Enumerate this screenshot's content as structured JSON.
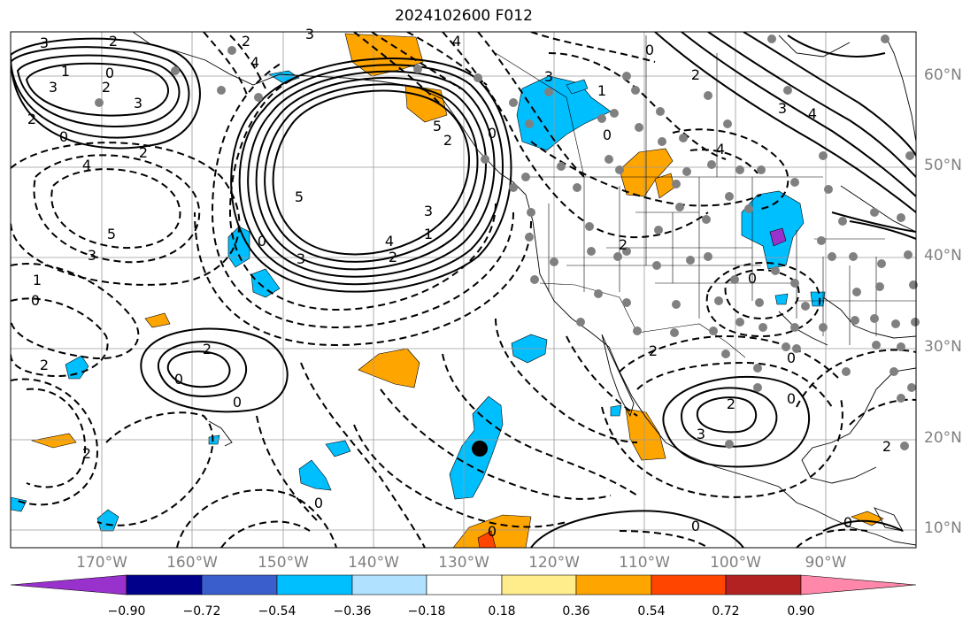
{
  "title": "2024102600 F012",
  "map": {
    "projection": "cylindrical",
    "lon_range": [
      -180,
      -80
    ],
    "lat_range": [
      8,
      65
    ],
    "gridlines": true,
    "colors": {
      "land_outline": "#000000",
      "grid": "#9a9a9a",
      "station_dot": "#808080",
      "marker": "#000000"
    }
  },
  "axes": {
    "lat_labels": [
      "10°N",
      "20°N",
      "30°N",
      "40°N",
      "50°N",
      "60°N"
    ],
    "lon_labels": [
      "170°W",
      "160°W",
      "150°W",
      "140°W",
      "130°W",
      "120°W",
      "110°W",
      "100°W",
      "90°W"
    ]
  },
  "contour_labels": [
    "3",
    "2",
    "1",
    "0",
    "3",
    "2",
    "3",
    "2",
    "0",
    "4",
    "2",
    "5",
    "3",
    "1",
    "0",
    "4",
    "3",
    "2",
    "3",
    "1",
    "0",
    "5",
    "4",
    "3",
    "2",
    "5",
    "4",
    "2",
    "0",
    "3",
    "1",
    "0",
    "0",
    "2",
    "2",
    "0",
    "0",
    "0",
    "2",
    "2",
    "2",
    "0",
    "3",
    "2",
    "0",
    "0",
    "0",
    "2",
    "2",
    "0",
    "0",
    "4",
    "4",
    "3"
  ],
  "colorbar": {
    "ticks": [
      "−0.90",
      "−0.72",
      "−0.54",
      "−0.36",
      "−0.18",
      "0.18",
      "0.36",
      "0.54",
      "0.72",
      "0.90"
    ],
    "colors": [
      "#9932cc",
      "#00008b",
      "#3a5fcd",
      "#00bfff",
      "#b0e2ff",
      "#ffffff",
      "#ffec8b",
      "#ffa500",
      "#ff4500",
      "#b22222",
      "#ff88aa"
    ]
  }
}
